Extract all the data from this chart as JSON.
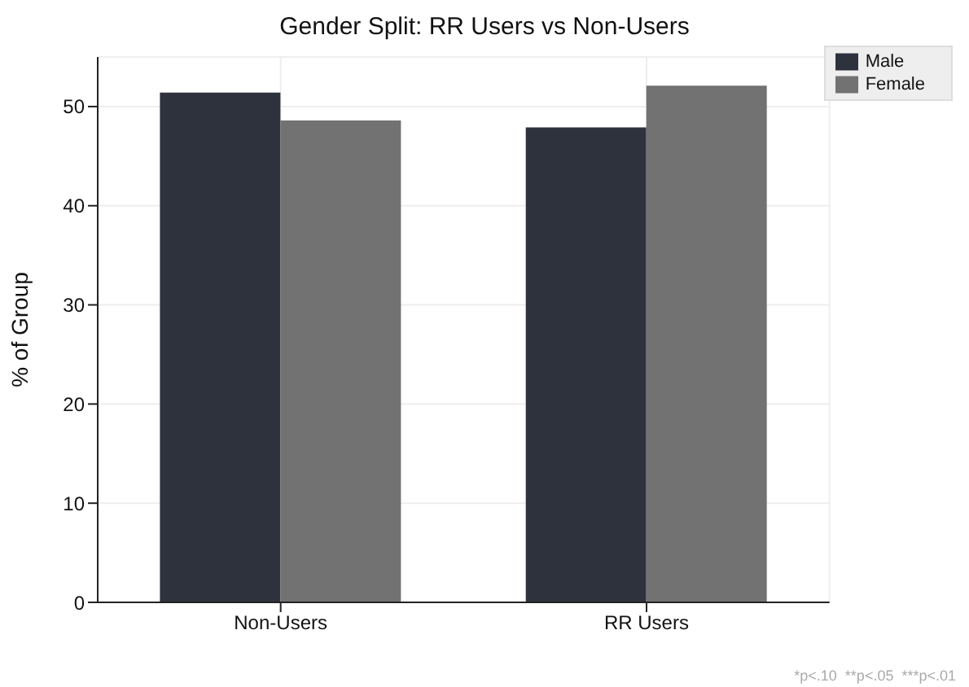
{
  "chart_data": {
    "type": "bar",
    "title": "Gender Split: RR Users vs Non-Users",
    "ylabel": "% of Group",
    "categories": [
      "Non-Users",
      "RR Users"
    ],
    "series": [
      {
        "name": "Male",
        "color": "#2e323c",
        "values": [
          51.4,
          47.9
        ]
      },
      {
        "name": "Female",
        "color": "#727272",
        "values": [
          48.6,
          52.1
        ]
      }
    ],
    "ylim": [
      0,
      55
    ],
    "yticks": [
      0,
      10,
      20,
      30,
      40,
      50
    ],
    "grid": true,
    "legend": "top right",
    "annotations": [
      "*p<.10  **p<.05  ***p<.01"
    ]
  }
}
